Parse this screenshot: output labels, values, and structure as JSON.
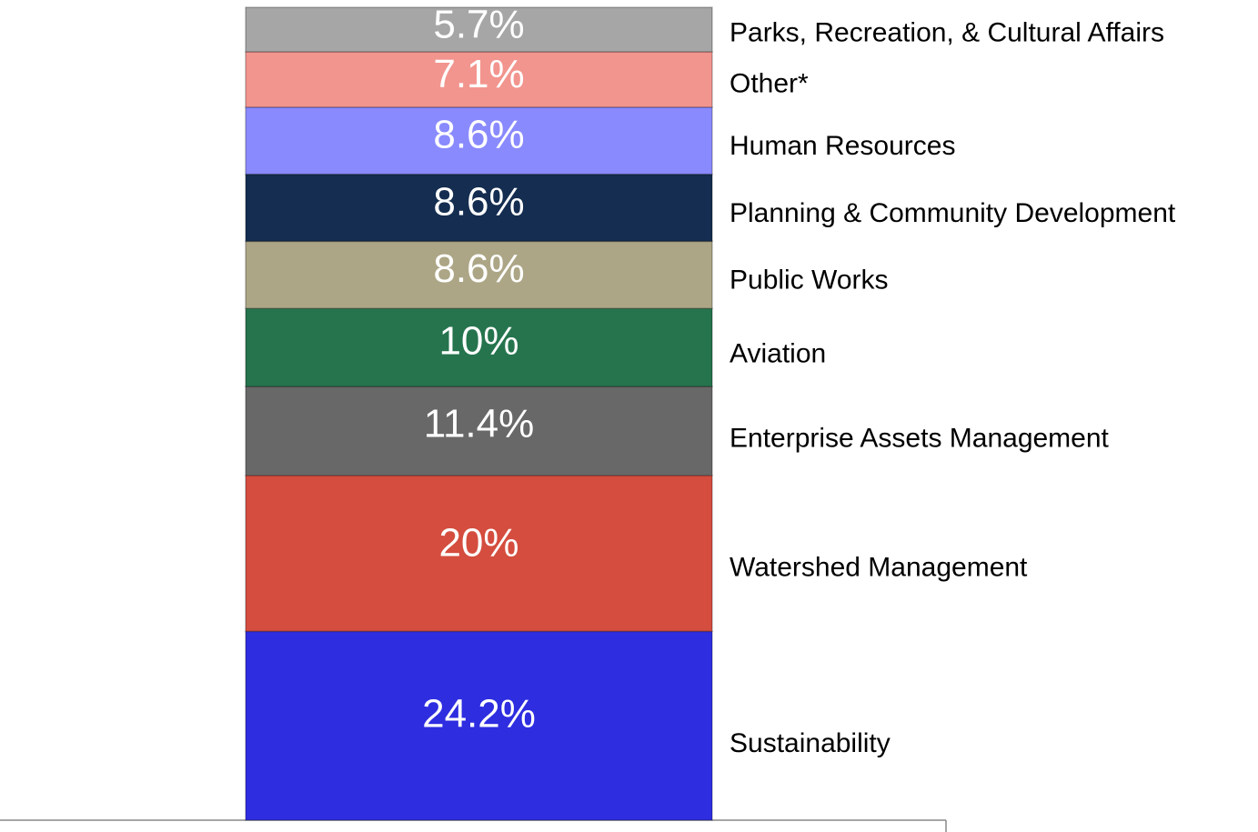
{
  "chart_data": {
    "type": "stacked-bar",
    "categories": [
      "Sustainability",
      "Watershed Management",
      "Enterprise Assets Management",
      "Aviation",
      "Public Works",
      "Planning & Community Development",
      "Human Resources",
      "Other*",
      "Parks, Recreation, & Cultural Affairs"
    ],
    "values": [
      24.2,
      20,
      11.4,
      10,
      8.6,
      8.6,
      8.6,
      7.1,
      5.7
    ],
    "value_labels": [
      "24.2%",
      "20%",
      "11.4%",
      "10%",
      "8.6%",
      "8.6%",
      "8.6%",
      "7.1%",
      "5.7%"
    ],
    "colors": [
      "#2e2de0",
      "#d44d3e",
      "#686868",
      "#25744d",
      "#aca686",
      "#142d50",
      "#8a8aff",
      "#f2958e",
      "#a6a6a6"
    ]
  }
}
